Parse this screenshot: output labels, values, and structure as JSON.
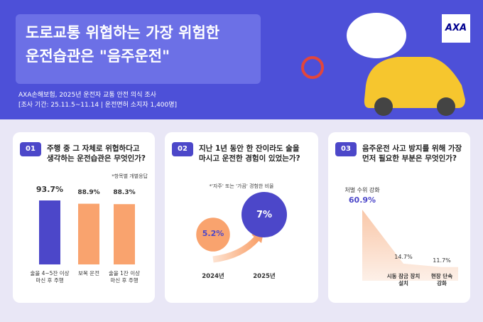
{
  "header": {
    "title": "도로교통 위협하는 가장 위험한\n운전습관은 \"음주운전\"",
    "source": "AXA손해보험, 2025년 운전자 교통 안전 의식 조사",
    "period": "[조사 기간: 25.11.5~11.14 | 운전면허 소지자 1,400명]",
    "logo": "AXA"
  },
  "chart_data": [
    {
      "type": "bar",
      "number": "01",
      "title": "주행 중 그 자체로 위협하다고\n생각하는 운전습관은 무엇인가?",
      "note": "*항목별 개별응답",
      "categories": [
        "술을 4~5잔 이상\n마신 후 주행",
        "보복 운전",
        "술을 1잔 이상\n마신 후 주행"
      ],
      "values": [
        93.7,
        88.9,
        88.3
      ],
      "value_labels": [
        "93.7%",
        "88.9%",
        "88.3%"
      ],
      "colors": [
        "#4c47c9",
        "#f9a36e",
        "#f9a36e"
      ]
    },
    {
      "type": "bubble",
      "number": "02",
      "title": "지난 1년 동안 한 잔이라도 술을\n마시고 운전한 경험이 있었는가?",
      "note": "*'자주' 또는 '가끔' 경험한 비율",
      "categories": [
        "2024년",
        "2025년"
      ],
      "values": [
        5.2,
        7
      ],
      "value_labels": [
        "5.2%",
        "7%"
      ],
      "colors": [
        "#f9a36e",
        "#4c47c9"
      ]
    },
    {
      "type": "area",
      "number": "03",
      "title": "음주운전 사고 방지를 위해 가장\n먼저 필요한 부분은 무엇인가?",
      "categories": [
        "처벌 수위 강화",
        "시동 잠금 장치\n설치",
        "현장 단속\n강화"
      ],
      "values": [
        60.9,
        14.7,
        11.7
      ],
      "value_labels": [
        "60.9%",
        "14.7%",
        "11.7%"
      ],
      "color": "#fbd9c4"
    }
  ]
}
